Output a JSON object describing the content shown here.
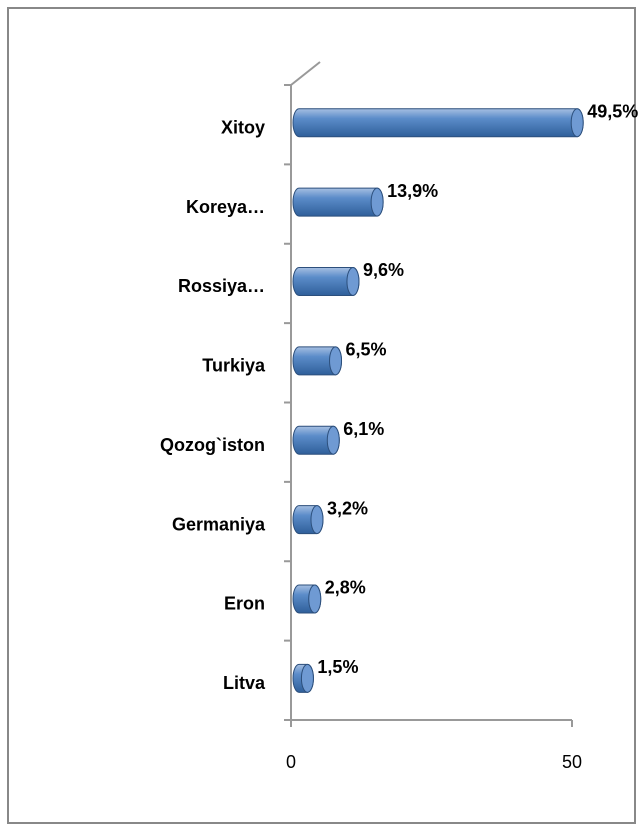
{
  "chart_data": {
    "type": "bar",
    "orientation": "horizontal",
    "categories": [
      "Xitoy",
      "Koreya…",
      "Rossiya…",
      "Turkiya",
      "Qozog`iston",
      "Germaniya",
      "Eron",
      "Litva"
    ],
    "values": [
      49.5,
      13.9,
      9.6,
      6.5,
      6.1,
      3.2,
      2.8,
      1.5
    ],
    "value_labels": [
      "49,5%",
      "13,9%",
      "9,6%",
      "6,5%",
      "6,1%",
      "3,2%",
      "2,8%",
      "1,5%"
    ],
    "color": "#4f81bd",
    "xlim": [
      0,
      50
    ],
    "xticks": [
      0,
      50
    ]
  }
}
